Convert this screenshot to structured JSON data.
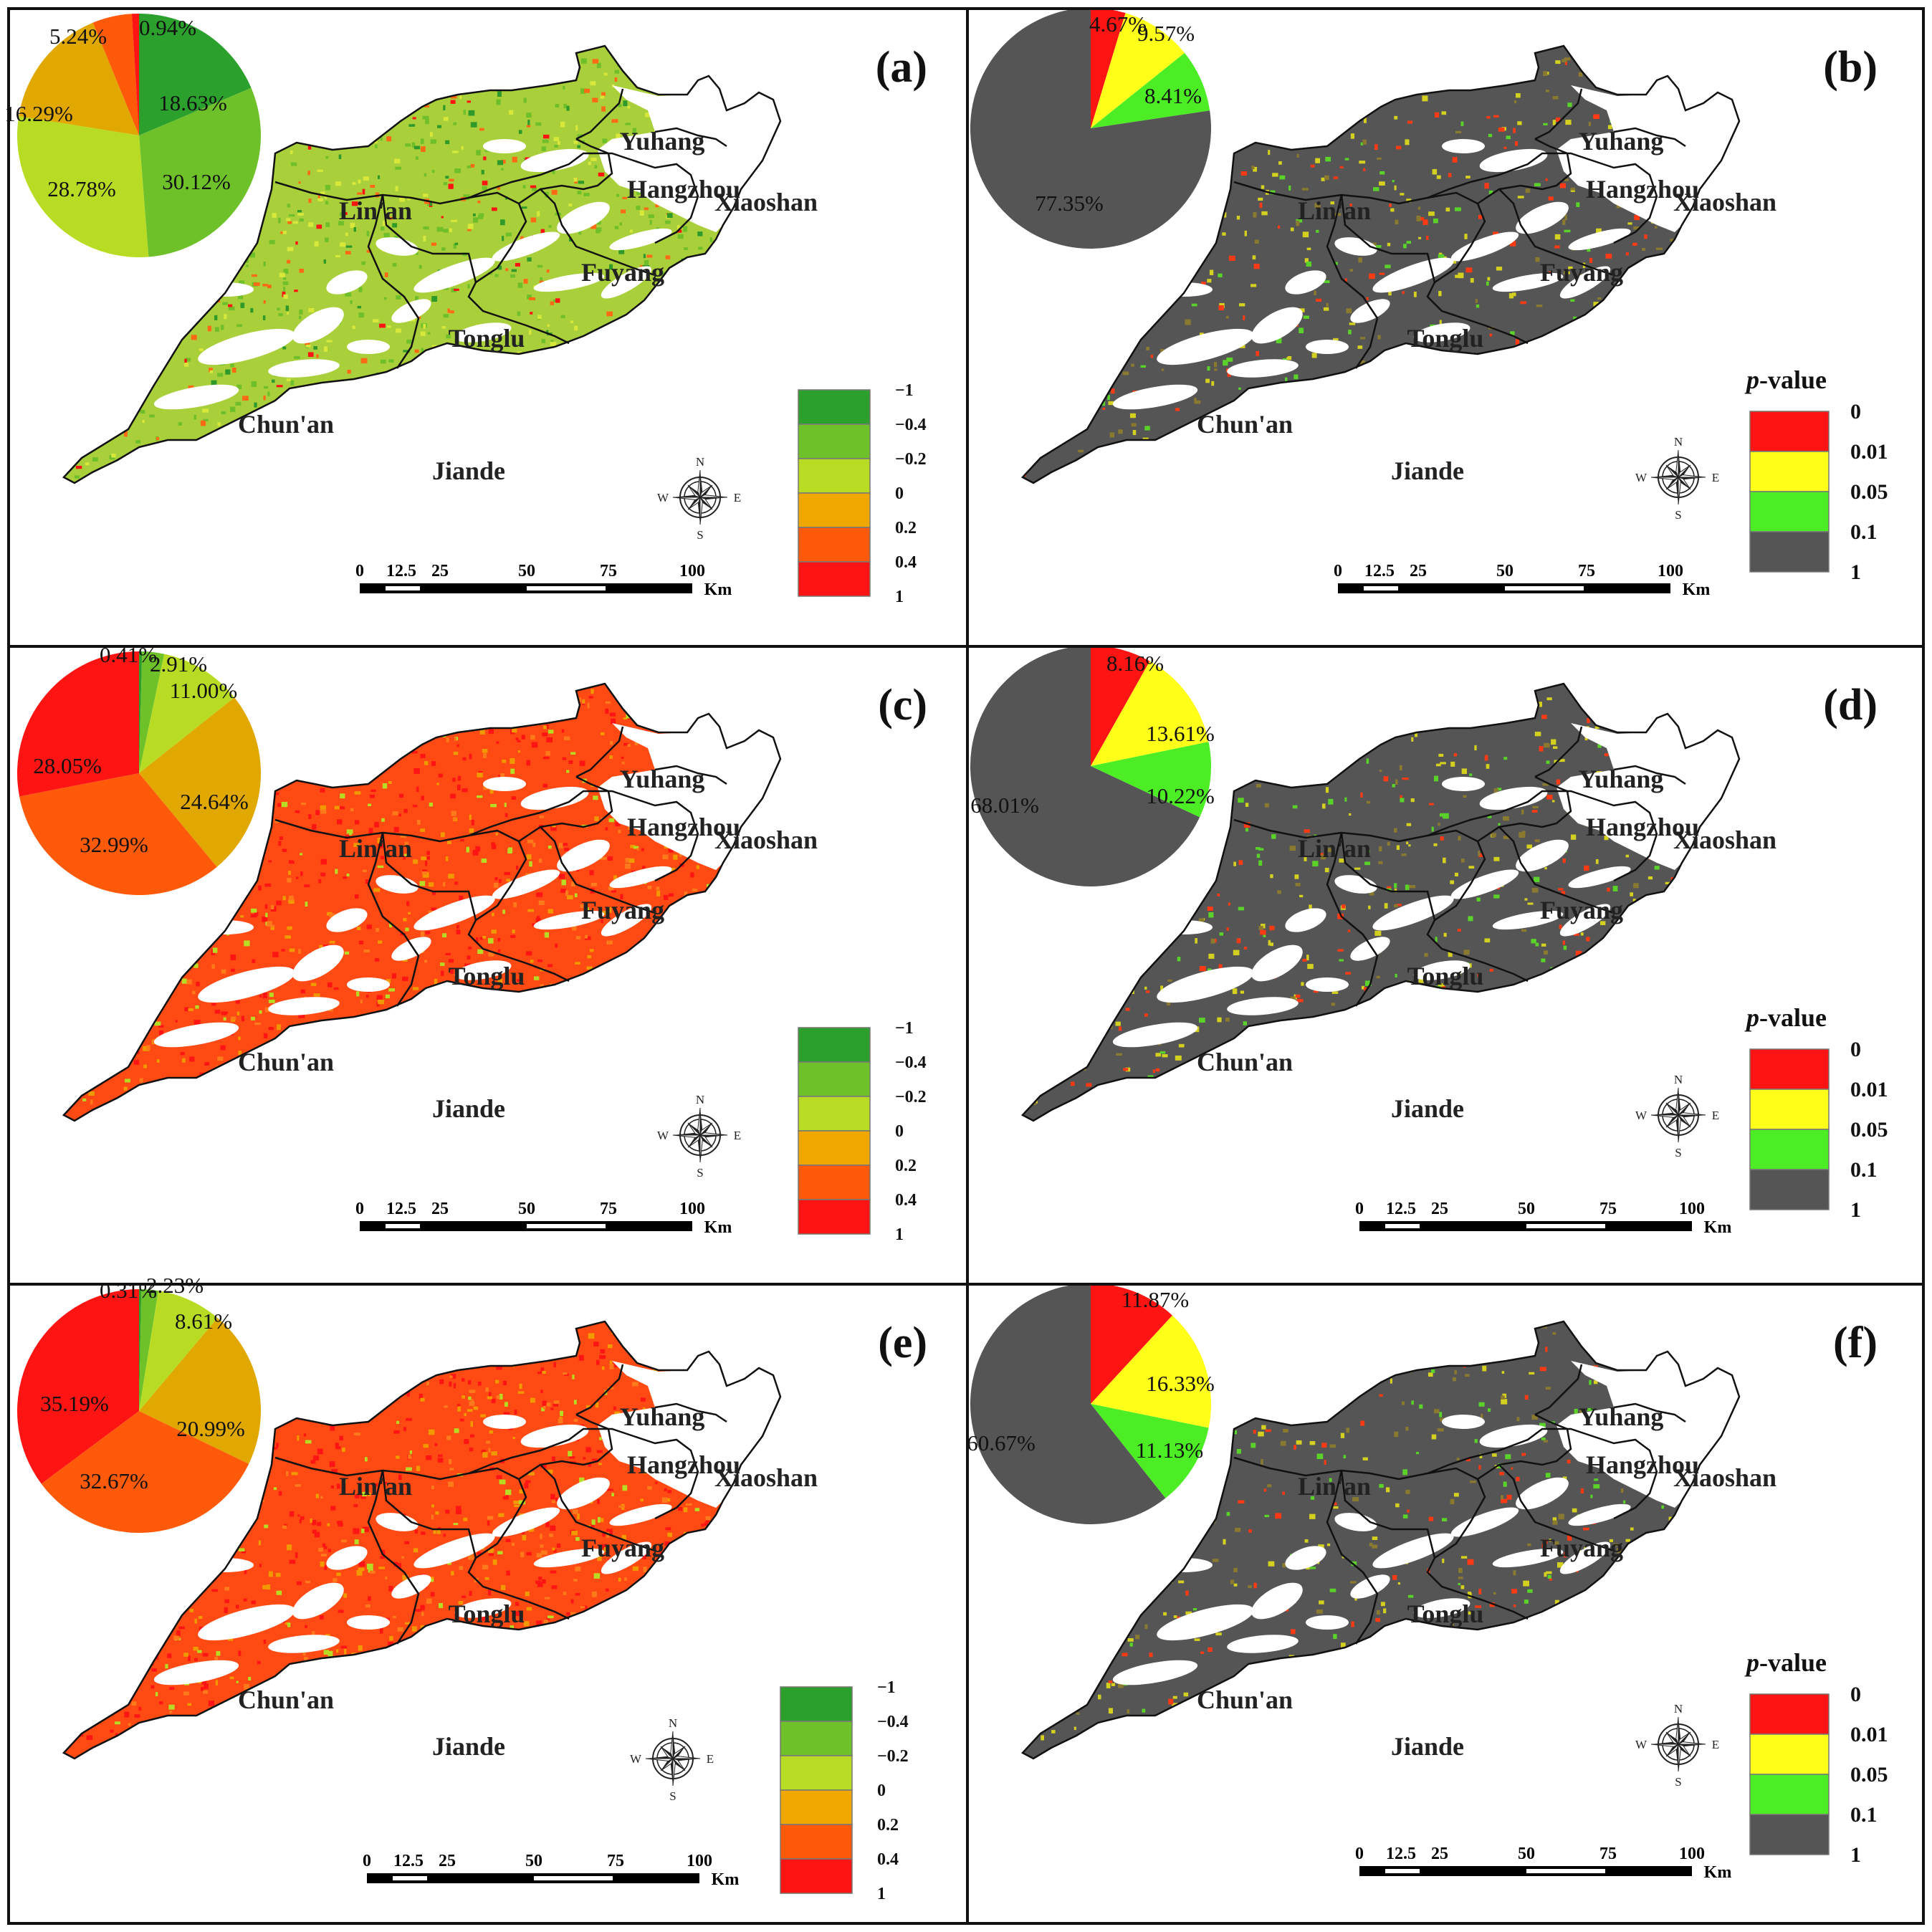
{
  "colors": {
    "corr": [
      "#2ca02c",
      "#6fc12a",
      "#b8dc24",
      "#f0a800",
      "#ff5a0a",
      "#ff1414"
    ],
    "pval": [
      "#ff1414",
      "#ffff1a",
      "#4ced24",
      "#555555"
    ],
    "outline": "#111111",
    "white": "#ffffff"
  },
  "regions": [
    "Yuhang",
    "Hangzhou",
    "Xiaoshan",
    "Lin'an",
    "Fuyang",
    "Tonglu",
    "Chun'an",
    "Jiande"
  ],
  "compass": {
    "n": "N",
    "s": "S",
    "e": "E",
    "w": "W"
  },
  "scalebar": {
    "ticks": [
      "0",
      "12.5",
      "25",
      "50",
      "75",
      "100"
    ],
    "unit": "Km"
  },
  "corr_legend": {
    "labels": [
      "−1",
      "−0.4",
      "−0.2",
      "0",
      "0.2",
      "0.4",
      "1"
    ]
  },
  "pval_legend": {
    "title_italic": "p",
    "title_rest": "-value",
    "labels": [
      "0",
      "0.01",
      "0.05",
      "0.1",
      "1"
    ]
  },
  "panels": [
    {
      "id": "a",
      "label": "(a)",
      "kind": "corr",
      "map_tone": "green",
      "pie": {
        "values": [
          18.63,
          30.12,
          28.78,
          16.29,
          5.24,
          0.94
        ],
        "labels": [
          "18.63%",
          "30.12%",
          "28.78%",
          "16.29%",
          "5.24%",
          "0.94%"
        ]
      }
    },
    {
      "id": "b",
      "label": "(b)",
      "kind": "pval",
      "map_tone": "gray",
      "pie": {
        "values": [
          4.67,
          9.57,
          8.41,
          77.35
        ],
        "labels": [
          "4.67%",
          "9.57%",
          "8.41%",
          "77.35%"
        ]
      }
    },
    {
      "id": "c",
      "label": "(c)",
      "kind": "corr",
      "map_tone": "red",
      "pie": {
        "values": [
          0.41,
          2.91,
          11.0,
          24.64,
          32.99,
          28.05
        ],
        "labels": [
          "0.41%",
          "2.91%",
          "11.00%",
          "24.64%",
          "32.99%",
          "28.05%"
        ]
      }
    },
    {
      "id": "d",
      "label": "(d)",
      "kind": "pval",
      "map_tone": "gray",
      "pie": {
        "values": [
          8.16,
          13.61,
          10.22,
          68.01
        ],
        "labels": [
          "8.16%",
          "13.61%",
          "10.22%",
          "68.01%"
        ]
      }
    },
    {
      "id": "e",
      "label": "(e)",
      "kind": "corr",
      "map_tone": "red",
      "pie": {
        "values": [
          0.31,
          2.23,
          8.61,
          20.99,
          32.67,
          35.19
        ],
        "labels": [
          "0.31%",
          "2.23%",
          "8.61%",
          "20.99%",
          "32.67%",
          "35.19%"
        ]
      }
    },
    {
      "id": "f",
      "label": "(f)",
      "kind": "pval",
      "map_tone": "gray",
      "pie": {
        "values": [
          11.87,
          16.33,
          11.13,
          60.67
        ],
        "labels": [
          "11.87%",
          "16.33%",
          "11.13%",
          "60.67%"
        ]
      }
    }
  ]
}
